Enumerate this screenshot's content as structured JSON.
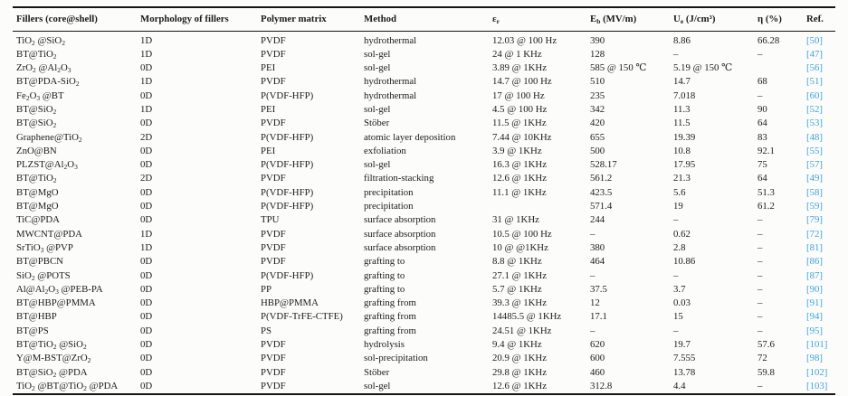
{
  "table": {
    "link_color": "#3fa3d8",
    "text_color": "#1b1b1b",
    "columns": [
      {
        "key": "filler",
        "base": "Fillers (core@shell)",
        "sub": "",
        "unit": ""
      },
      {
        "key": "morphology",
        "base": "Morphology of fillers",
        "sub": "",
        "unit": ""
      },
      {
        "key": "matrix",
        "base": "Polymer matrix",
        "sub": "",
        "unit": ""
      },
      {
        "key": "method",
        "base": "Method",
        "sub": "",
        "unit": ""
      },
      {
        "key": "epsilon",
        "base": "ε",
        "sub": "r",
        "unit": ""
      },
      {
        "key": "eb",
        "base": "E",
        "sub": "b",
        "unit": " (MV/m)"
      },
      {
        "key": "ue",
        "base": "U",
        "sub": "e",
        "unit": " (J/cm³)"
      },
      {
        "key": "eta",
        "base": "η",
        "sub": "",
        "unit": " (%)"
      },
      {
        "key": "ref",
        "base": "Ref.",
        "sub": "",
        "unit": ""
      }
    ],
    "rows": [
      {
        "filler": "TiO₂ @SiO₂",
        "morphology": "1D",
        "matrix": "PVDF",
        "method": "hydrothermal",
        "epsilon": "12.03 @ 100 Hz",
        "eb": "390",
        "ue": "8.86",
        "eta": "66.28",
        "ref": "[50]"
      },
      {
        "filler": "BT@TiO₂",
        "morphology": "1D",
        "matrix": "PVDF",
        "method": "sol-gel",
        "epsilon": "24 @ 1 KHz",
        "eb": "128",
        "ue": "–",
        "eta": "–",
        "ref": "[47]"
      },
      {
        "filler": "ZrO₂ @Al₂O₃",
        "morphology": "0D",
        "matrix": "PEI",
        "method": "sol-gel",
        "epsilon": "3.89 @ 1KHz",
        "eb": "585 @ 150 ℃",
        "ue": "5.19 @ 150 ℃",
        "eta": "",
        "ref": "[56]"
      },
      {
        "filler": "BT@PDA-SiO₂",
        "morphology": "1D",
        "matrix": "PVDF",
        "method": "hydrothermal",
        "epsilon": "14.7 @ 100 Hz",
        "eb": "510",
        "ue": "14.7",
        "eta": "68",
        "ref": "[51]"
      },
      {
        "filler": "Fe₂O₃ @BT",
        "morphology": "0D",
        "matrix": "P(VDF-HFP)",
        "method": "hydrothermal",
        "epsilon": "17 @ 100 Hz",
        "eb": "235",
        "ue": "7.018",
        "eta": "–",
        "ref": "[60]"
      },
      {
        "filler": "BT@SiO₂",
        "morphology": "1D",
        "matrix": "PEI",
        "method": "sol-gel",
        "epsilon": "4.5 @ 100 Hz",
        "eb": "342",
        "ue": "11.3",
        "eta": "90",
        "ref": "[52]"
      },
      {
        "filler": "BT@SiO₂",
        "morphology": "0D",
        "matrix": "PVDF",
        "method": "Stöber",
        "epsilon": "11.5 @ 1KHz",
        "eb": "420",
        "ue": "11.5",
        "eta": "64",
        "ref": "[53]"
      },
      {
        "filler": "Graphene@TiO₂",
        "morphology": "2D",
        "matrix": "P(VDF-HFP)",
        "method": "atomic layer deposition",
        "epsilon": "7.44 @ 10KHz",
        "eb": "655",
        "ue": "19.39",
        "eta": "83",
        "ref": "[48]"
      },
      {
        "filler": "ZnO@BN",
        "morphology": "0D",
        "matrix": "PEI",
        "method": "exfoliation",
        "epsilon": "3.9 @ 1KHz",
        "eb": "500",
        "ue": "10.8",
        "eta": "92.1",
        "ref": "[55]"
      },
      {
        "filler": "PLZST@Al₂O₃",
        "morphology": "0D",
        "matrix": "P(VDF-HFP)",
        "method": "sol-gel",
        "epsilon": "16.3 @ 1KHz",
        "eb": "528.17",
        "ue": "17.95",
        "eta": "75",
        "ref": "[57]"
      },
      {
        "filler": "BT@TiO₂",
        "morphology": "2D",
        "matrix": "PVDF",
        "method": "filtration-stacking",
        "epsilon": "12.6 @ 1KHz",
        "eb": "561.2",
        "ue": "21.3",
        "eta": "64",
        "ref": "[49]"
      },
      {
        "filler": "BT@MgO",
        "morphology": "0D",
        "matrix": "P(VDF-HFP)",
        "method": "precipitation",
        "epsilon": "11.1 @ 1KHz",
        "eb": "423.5",
        "ue": "5.6",
        "eta": "51.3",
        "ref": "[58]"
      },
      {
        "filler": "BT@MgO",
        "morphology": "0D",
        "matrix": "P(VDF-HFP)",
        "method": "precipitation",
        "epsilon": "",
        "eb": "571.4",
        "ue": "19",
        "eta": "61.2",
        "ref": "[59]"
      },
      {
        "filler": "TiC@PDA",
        "morphology": "0D",
        "matrix": "TPU",
        "method": "surface absorption",
        "epsilon": "31 @ 1KHz",
        "eb": "244",
        "ue": "–",
        "eta": "–",
        "ref": "[79]"
      },
      {
        "filler": "MWCNT@PDA",
        "morphology": "1D",
        "matrix": "PVDF",
        "method": "surface absorption",
        "epsilon": "10.5 @ 100 Hz",
        "eb": "–",
        "ue": "0.62",
        "eta": "–",
        "ref": "[72]"
      },
      {
        "filler": "SrTiO₃ @PVP",
        "morphology": "1D",
        "matrix": "PVDF",
        "method": "surface absorption",
        "epsilon": "10 @ @1KHz",
        "eb": "380",
        "ue": "2.8",
        "eta": "–",
        "ref": "[81]"
      },
      {
        "filler": "BT@PBCN",
        "morphology": "0D",
        "matrix": "PVDF",
        "method": "grafting to",
        "epsilon": "8.8 @ 1KHz",
        "eb": "464",
        "ue": "10.86",
        "eta": "–",
        "ref": "[86]"
      },
      {
        "filler": "SiO₂ @POTS",
        "morphology": "0D",
        "matrix": "P(VDF-HFP)",
        "method": "grafting to",
        "epsilon": "27.1 @ 1KHz",
        "eb": "–",
        "ue": "–",
        "eta": "–",
        "ref": "[87]"
      },
      {
        "filler": "Al@Al₂O₃ @PEB-PA",
        "morphology": "0D",
        "matrix": "PP",
        "method": "grafting to",
        "epsilon": "5.7 @ 1KHz",
        "eb": "37.5",
        "ue": "3.7",
        "eta": "–",
        "ref": "[90]"
      },
      {
        "filler": "BT@HBP@PMMA",
        "morphology": "0D",
        "matrix": "HBP@PMMA",
        "method": "grafting from",
        "epsilon": "39.3 @ 1KHz",
        "eb": "12",
        "ue": "0.03",
        "eta": "–",
        "ref": "[91]"
      },
      {
        "filler": "BT@HBP",
        "morphology": "0D",
        "matrix": "P(VDF-TrFE-CTFE)",
        "method": "grafting from",
        "epsilon": "14485.5 @ 1KHz",
        "eb": "17.1",
        "ue": "15",
        "eta": "–",
        "ref": "[94]"
      },
      {
        "filler": "BT@PS",
        "morphology": "0D",
        "matrix": "PS",
        "method": "grafting from",
        "epsilon": "24.51 @ 1KHz",
        "eb": "–",
        "ue": "–",
        "eta": "–",
        "ref": "[95]"
      },
      {
        "filler": "BT@TiO₂ @SiO₂",
        "morphology": "0D",
        "matrix": "PVDF",
        "method": "hydrolysis",
        "epsilon": "9.4 @ 1KHz",
        "eb": "620",
        "ue": "19.7",
        "eta": "57.6",
        "ref": "[101]"
      },
      {
        "filler": "Y@M-BST@ZrO₂",
        "morphology": "0D",
        "matrix": "PVDF",
        "method": "sol-precipitation",
        "epsilon": "20.9 @ 1KHz",
        "eb": "600",
        "ue": "7.555",
        "eta": "72",
        "ref": "[98]"
      },
      {
        "filler": "BT@SiO₂ @PDA",
        "morphology": "0D",
        "matrix": "PVDF",
        "method": "Stöber",
        "epsilon": "29.8 @ 1KHz",
        "eb": "460",
        "ue": "13.78",
        "eta": "59.8",
        "ref": "[102]"
      },
      {
        "filler": "TiO₂ @BT@TiO₂ @PDA",
        "morphology": "0D",
        "matrix": "PVDF",
        "method": "sol-gel",
        "epsilon": "12.6 @ 1KHz",
        "eb": "312.8",
        "ue": "4.4",
        "eta": "–",
        "ref": "[103]"
      }
    ]
  }
}
